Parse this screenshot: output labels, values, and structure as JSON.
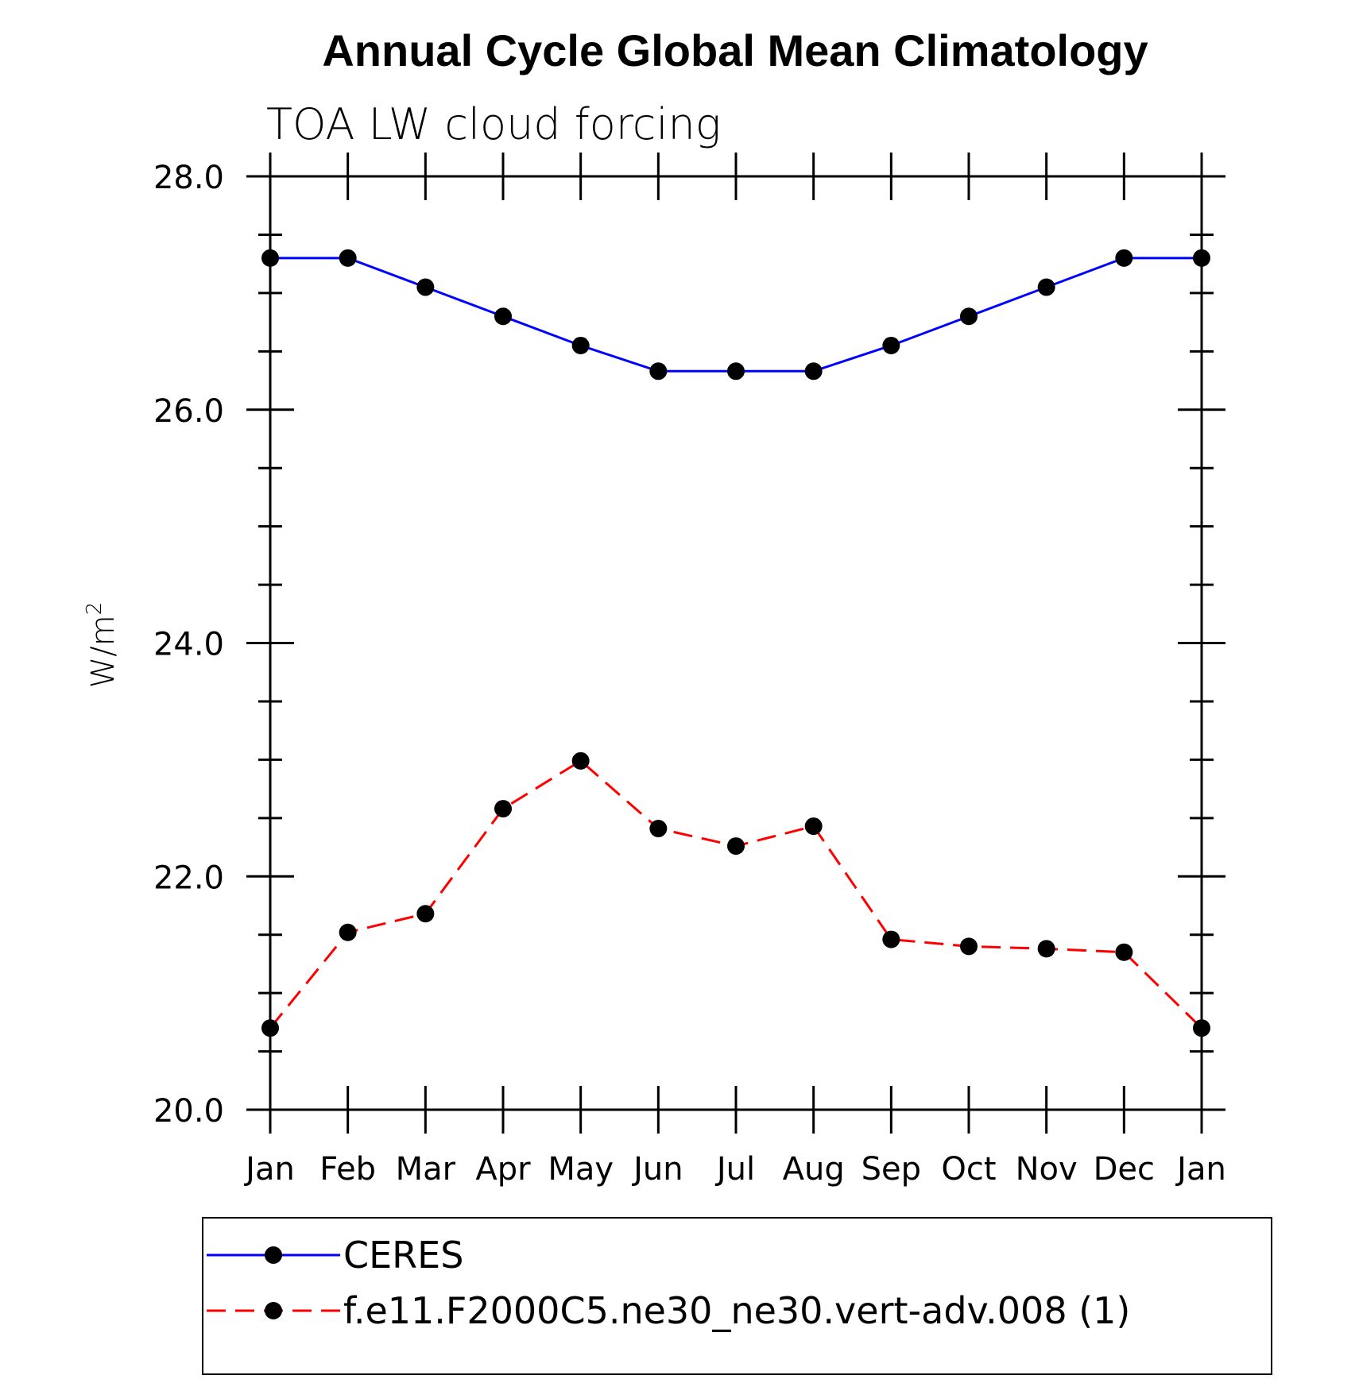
{
  "chart_data": {
    "type": "line",
    "title": "Annual Cycle Global Mean Climatology",
    "subtitle": "TOA LW cloud forcing",
    "ylabel": "W/m",
    "ylabel_superscript": "2",
    "categories": [
      "Jan",
      "Feb",
      "Mar",
      "Apr",
      "May",
      "Jun",
      "Jul",
      "Aug",
      "Sep",
      "Oct",
      "Nov",
      "Dec",
      "Jan"
    ],
    "ylim": [
      20.0,
      28.0
    ],
    "yticks": [
      "20.0",
      "22.0",
      "24.0",
      "26.0",
      "28.0"
    ],
    "grid": false,
    "legend_position": "bottom",
    "series": [
      {
        "name": "CERES",
        "color": "#0000ff",
        "dash": "solid",
        "values": [
          27.3,
          27.3,
          27.05,
          26.8,
          26.55,
          26.33,
          26.33,
          26.33,
          26.55,
          26.8,
          27.05,
          27.3,
          27.3
        ]
      },
      {
        "name": "f.e11.F2000C5.ne30_ne30.vert-adv.008 (1)",
        "color": "#ff0000",
        "dash": "dashed",
        "values": [
          20.7,
          21.52,
          21.68,
          22.58,
          22.99,
          22.41,
          22.26,
          22.43,
          21.46,
          21.4,
          21.38,
          21.35,
          20.7
        ]
      }
    ]
  }
}
